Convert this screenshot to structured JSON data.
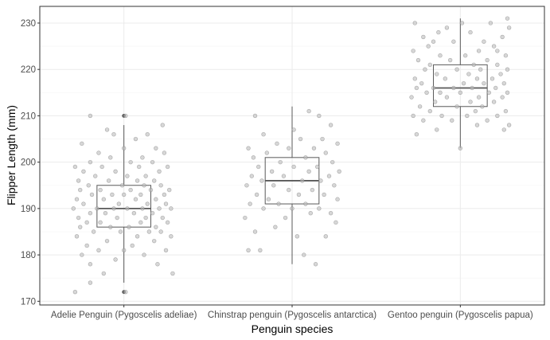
{
  "chart_data": {
    "type": "boxplot-jitter",
    "title": "",
    "xlabel": "Penguin species",
    "ylabel": "Flipper Length (mm)",
    "ylim": [
      169.2,
      233.6
    ],
    "yticks": [
      170,
      180,
      190,
      200,
      210,
      220,
      230
    ],
    "grid": true,
    "theme": "bw",
    "colors": {
      "panel_border": "#333333",
      "grid_major": "#ebebeb",
      "grid_minor": "#f5f5f5",
      "box_line": "#595959",
      "point_fill": "#bdbdbd",
      "point_stroke": "#808080",
      "outlier": "#333333"
    },
    "categories": [
      "Adelie Penguin (Pygoscelis adeliae)",
      "Chinstrap penguin (Pygoscelis antarctica)",
      "Gentoo penguin (Pygoscelis papua)"
    ],
    "boxes": [
      {
        "min": 174,
        "q1": 186,
        "median": 190,
        "q3": 195,
        "max": 208,
        "outliers": [
          172,
          210
        ]
      },
      {
        "min": 178,
        "q1": 191,
        "median": 196,
        "q3": 201,
        "max": 212,
        "outliers": []
      },
      {
        "min": 203,
        "q1": 212,
        "median": 216,
        "q3": 221,
        "max": 231,
        "outliers": []
      }
    ],
    "points": [
      [
        [
          -0.29,
          172
        ],
        [
          -0.2,
          174
        ],
        [
          0.01,
          172
        ],
        [
          -0.12,
          176
        ],
        [
          0.29,
          176
        ],
        [
          -0.2,
          178
        ],
        [
          0.2,
          178
        ],
        [
          -0.05,
          179
        ],
        [
          0.12,
          180
        ],
        [
          -0.25,
          180
        ],
        [
          -0.15,
          181
        ],
        [
          0.0,
          181
        ],
        [
          0.25,
          181
        ],
        [
          -0.22,
          182
        ],
        [
          0.05,
          182
        ],
        [
          0.18,
          183
        ],
        [
          -0.1,
          183
        ],
        [
          -0.28,
          184
        ],
        [
          0.08,
          184
        ],
        [
          0.28,
          184
        ],
        [
          -0.18,
          185
        ],
        [
          -0.02,
          185
        ],
        [
          0.15,
          185
        ],
        [
          0.22,
          185
        ],
        [
          -0.26,
          186
        ],
        [
          -0.08,
          186
        ],
        [
          0.03,
          186
        ],
        [
          0.19,
          186
        ],
        [
          -0.14,
          187
        ],
        [
          0.1,
          187
        ],
        [
          0.26,
          187
        ],
        [
          -0.22,
          187
        ],
        [
          -0.04,
          188
        ],
        [
          0.13,
          188
        ],
        [
          -0.27,
          188
        ],
        [
          0.23,
          188
        ],
        [
          -0.11,
          189
        ],
        [
          0.06,
          189
        ],
        [
          0.17,
          189
        ],
        [
          -0.2,
          189
        ],
        [
          -0.3,
          190
        ],
        [
          -0.06,
          190
        ],
        [
          0.02,
          190
        ],
        [
          0.11,
          190
        ],
        [
          0.21,
          190
        ],
        [
          -0.16,
          190
        ],
        [
          0.28,
          190
        ],
        [
          -0.24,
          191
        ],
        [
          -0.03,
          191
        ],
        [
          0.14,
          191
        ],
        [
          0.25,
          191
        ],
        [
          -0.12,
          192
        ],
        [
          0.07,
          192
        ],
        [
          -0.28,
          192
        ],
        [
          0.19,
          192
        ],
        [
          -0.19,
          193
        ],
        [
          0.0,
          193
        ],
        [
          0.1,
          193
        ],
        [
          0.24,
          193
        ],
        [
          -0.07,
          193
        ],
        [
          -0.26,
          194
        ],
        [
          0.04,
          194
        ],
        [
          0.16,
          194
        ],
        [
          -0.14,
          194
        ],
        [
          0.27,
          194
        ],
        [
          -0.21,
          195
        ],
        [
          -0.01,
          195
        ],
        [
          0.12,
          195
        ],
        [
          0.22,
          195
        ],
        [
          -0.09,
          196
        ],
        [
          0.08,
          196
        ],
        [
          -0.27,
          196
        ],
        [
          0.18,
          196
        ],
        [
          -0.17,
          197
        ],
        [
          0.02,
          197
        ],
        [
          0.13,
          197
        ],
        [
          -0.05,
          198
        ],
        [
          0.21,
          198
        ],
        [
          -0.24,
          198
        ],
        [
          0.09,
          199
        ],
        [
          -0.13,
          199
        ],
        [
          0.26,
          199
        ],
        [
          -0.29,
          199
        ],
        [
          0.04,
          200
        ],
        [
          0.17,
          200
        ],
        [
          -0.2,
          200
        ],
        [
          -0.08,
          201
        ],
        [
          0.11,
          201
        ],
        [
          0.24,
          202
        ],
        [
          -0.15,
          202
        ],
        [
          0.0,
          203
        ],
        [
          0.19,
          203
        ],
        [
          -0.25,
          204
        ],
        [
          0.07,
          205
        ],
        [
          -0.06,
          206
        ],
        [
          0.23,
          208
        ],
        [
          -0.1,
          207
        ],
        [
          0.14,
          206
        ],
        [
          -0.2,
          210
        ],
        [
          0.01,
          210
        ]
      ],
      [
        [
          -0.26,
          181
        ],
        [
          -0.19,
          181
        ],
        [
          0.07,
          180
        ],
        [
          0.14,
          178
        ],
        [
          -0.22,
          185
        ],
        [
          0.03,
          184
        ],
        [
          0.2,
          184
        ],
        [
          -0.1,
          186
        ],
        [
          0.26,
          187
        ],
        [
          -0.28,
          188
        ],
        [
          -0.04,
          188
        ],
        [
          0.11,
          189
        ],
        [
          0.23,
          189
        ],
        [
          -0.17,
          190
        ],
        [
          0.0,
          190
        ],
        [
          0.16,
          190
        ],
        [
          -0.25,
          191
        ],
        [
          -0.08,
          191
        ],
        [
          0.08,
          191
        ],
        [
          0.27,
          192
        ],
        [
          -0.14,
          192
        ],
        [
          0.04,
          193
        ],
        [
          0.19,
          193
        ],
        [
          -0.21,
          193
        ],
        [
          -0.02,
          194
        ],
        [
          0.12,
          194
        ],
        [
          0.25,
          195
        ],
        [
          -0.11,
          195
        ],
        [
          -0.27,
          195
        ],
        [
          0.06,
          196
        ],
        [
          0.17,
          196
        ],
        [
          -0.18,
          196
        ],
        [
          -0.05,
          197
        ],
        [
          0.22,
          197
        ],
        [
          -0.24,
          197
        ],
        [
          0.1,
          198
        ],
        [
          -0.12,
          198
        ],
        [
          0.28,
          198
        ],
        [
          0.01,
          199
        ],
        [
          -0.2,
          199
        ],
        [
          0.15,
          199
        ],
        [
          -0.07,
          200
        ],
        [
          0.24,
          200
        ],
        [
          -0.23,
          201
        ],
        [
          0.08,
          201
        ],
        [
          -0.15,
          202
        ],
        [
          0.2,
          202
        ],
        [
          -0.02,
          203
        ],
        [
          0.13,
          203
        ],
        [
          -0.26,
          203
        ],
        [
          0.27,
          204
        ],
        [
          -0.09,
          204
        ],
        [
          0.05,
          205
        ],
        [
          0.18,
          205
        ],
        [
          -0.17,
          206
        ],
        [
          0.01,
          207
        ],
        [
          0.23,
          208
        ],
        [
          -0.22,
          210
        ],
        [
          0.16,
          210
        ],
        [
          0.1,
          211
        ]
      ],
      [
        [
          0.0,
          203
        ],
        [
          -0.26,
          206
        ],
        [
          0.26,
          207
        ],
        [
          -0.14,
          207
        ],
        [
          0.1,
          208
        ],
        [
          0.29,
          208
        ],
        [
          -0.22,
          209
        ],
        [
          -0.05,
          209
        ],
        [
          0.16,
          209
        ],
        [
          -0.28,
          210
        ],
        [
          -0.11,
          210
        ],
        [
          0.04,
          210
        ],
        [
          0.22,
          210
        ],
        [
          -0.18,
          211
        ],
        [
          0.09,
          211
        ],
        [
          0.27,
          211
        ],
        [
          -0.24,
          212
        ],
        [
          -0.02,
          212
        ],
        [
          0.13,
          212
        ],
        [
          -0.15,
          213
        ],
        [
          0.06,
          213
        ],
        [
          0.2,
          213
        ],
        [
          -0.29,
          214
        ],
        [
          -0.08,
          214
        ],
        [
          0.11,
          214
        ],
        [
          0.25,
          214
        ],
        [
          -0.2,
          215
        ],
        [
          0.0,
          215
        ],
        [
          0.17,
          215
        ],
        [
          -0.12,
          215
        ],
        [
          0.28,
          215
        ],
        [
          -0.26,
          216
        ],
        [
          -0.04,
          216
        ],
        [
          0.07,
          216
        ],
        [
          0.21,
          216
        ],
        [
          -0.16,
          216
        ],
        [
          -0.23,
          217
        ],
        [
          0.02,
          217
        ],
        [
          0.14,
          217
        ],
        [
          0.26,
          217
        ],
        [
          -0.09,
          218
        ],
        [
          0.1,
          218
        ],
        [
          -0.27,
          218
        ],
        [
          0.19,
          218
        ],
        [
          -0.14,
          219
        ],
        [
          0.05,
          219
        ],
        [
          0.24,
          219
        ],
        [
          -0.21,
          220
        ],
        [
          -0.02,
          220
        ],
        [
          0.12,
          220
        ],
        [
          0.28,
          220
        ],
        [
          -0.18,
          221
        ],
        [
          0.08,
          221
        ],
        [
          0.22,
          221
        ],
        [
          -0.25,
          222
        ],
        [
          -0.06,
          222
        ],
        [
          0.16,
          222
        ],
        [
          -0.12,
          223
        ],
        [
          0.03,
          223
        ],
        [
          0.27,
          223
        ],
        [
          -0.28,
          224
        ],
        [
          0.11,
          224
        ],
        [
          -0.19,
          225
        ],
        [
          0.2,
          225
        ],
        [
          -0.04,
          226
        ],
        [
          0.14,
          226
        ],
        [
          -0.22,
          227
        ],
        [
          0.25,
          227
        ],
        [
          0.06,
          228
        ],
        [
          -0.13,
          228
        ],
        [
          0.29,
          229
        ],
        [
          -0.27,
          230
        ],
        [
          0.01,
          230
        ],
        [
          0.18,
          230
        ],
        [
          -0.08,
          229
        ],
        [
          0.28,
          231
        ],
        [
          0.22,
          224
        ],
        [
          -0.16,
          226
        ]
      ]
    ]
  }
}
